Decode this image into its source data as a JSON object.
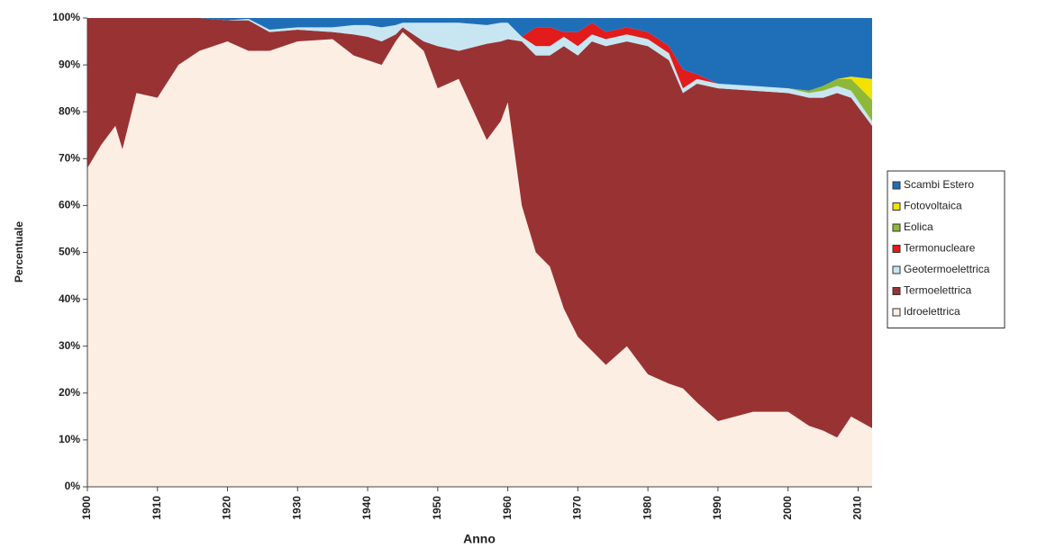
{
  "chart_data": {
    "type": "stacked_area",
    "y_label": "Percentuale",
    "x_label": "Anno",
    "x": [
      1900,
      1902,
      1904,
      1905,
      1907,
      1910,
      1913,
      1916,
      1920,
      1923,
      1926,
      1930,
      1935,
      1938,
      1940,
      1942,
      1944,
      1945,
      1948,
      1950,
      1953,
      1957,
      1959,
      1960,
      1962,
      1964,
      1966,
      1968,
      1970,
      1972,
      1974,
      1977,
      1980,
      1983,
      1985,
      1987,
      1990,
      1995,
      2000,
      2003,
      2005,
      2007,
      2009,
      2012
    ],
    "series": [
      {
        "name": "Idroelettrica",
        "color": "#fdeee4",
        "values": [
          68,
          73,
          77,
          72,
          84,
          83,
          90,
          93,
          95,
          93,
          93,
          95,
          95.5,
          92,
          91,
          90,
          95,
          97,
          93,
          85,
          87,
          74,
          78,
          82,
          60,
          50,
          47,
          38,
          32,
          29,
          26,
          30,
          24,
          22,
          21,
          18,
          14,
          16,
          16,
          13,
          12,
          10.5,
          15,
          12.5
        ]
      },
      {
        "name": "Termoelettrica",
        "color": "#993333",
        "values": [
          32,
          27,
          23,
          28,
          16,
          17,
          10,
          7,
          4.5,
          6.5,
          4,
          2.5,
          1.5,
          4.5,
          5,
          5,
          1.5,
          1,
          2,
          9,
          6,
          20.5,
          17,
          13.5,
          35,
          42,
          45,
          56,
          60,
          66,
          68,
          65,
          70,
          69,
          63,
          68,
          71,
          68.5,
          68,
          70,
          71,
          73.5,
          68,
          64.5
        ]
      },
      {
        "name": "Geotermoelettrica",
        "color": "#c7e6f2",
        "values": [
          0,
          0,
          0,
          0,
          0,
          0,
          0,
          0,
          0,
          0.3,
          0.5,
          0.5,
          1,
          2,
          2.5,
          3,
          2,
          1,
          4,
          5,
          6,
          4,
          4,
          3.5,
          1,
          2,
          2,
          2,
          2,
          1.5,
          1.5,
          1.5,
          1.5,
          1.5,
          1,
          1,
          1,
          1,
          1,
          1,
          1.5,
          1.5,
          1.5,
          1
        ]
      },
      {
        "name": "Termonucleare",
        "color": "#e21b1b",
        "values": [
          0,
          0,
          0,
          0,
          0,
          0,
          0,
          0,
          0,
          0,
          0,
          0,
          0,
          0,
          0,
          0,
          0,
          0,
          0,
          0,
          0,
          0,
          0,
          0,
          0,
          4,
          4,
          1,
          3,
          2.5,
          1.5,
          1.5,
          1.5,
          1.5,
          4,
          1,
          0,
          0,
          0,
          0,
          0,
          0,
          0,
          0
        ]
      },
      {
        "name": "Eolica",
        "color": "#8db83a",
        "values": [
          0,
          0,
          0,
          0,
          0,
          0,
          0,
          0,
          0,
          0,
          0,
          0,
          0,
          0,
          0,
          0,
          0,
          0,
          0,
          0,
          0,
          0,
          0,
          0,
          0,
          0,
          0,
          0,
          0,
          0,
          0,
          0,
          0,
          0,
          0,
          0,
          0,
          0,
          0,
          0.5,
          1,
          1.5,
          2.5,
          4.5
        ]
      },
      {
        "name": "Fotovoltaica",
        "color": "#f2e200",
        "values": [
          0,
          0,
          0,
          0,
          0,
          0,
          0,
          0,
          0,
          0,
          0,
          0,
          0,
          0,
          0,
          0,
          0,
          0,
          0,
          0,
          0,
          0,
          0,
          0,
          0,
          0,
          0,
          0,
          0,
          0,
          0,
          0,
          0,
          0,
          0,
          0,
          0,
          0,
          0,
          0,
          0,
          0,
          0.5,
          4.5
        ]
      },
      {
        "name": "Scambi Estero",
        "color": "#1f6fb8",
        "values": [
          0,
          0,
          0,
          0,
          0,
          0,
          0,
          0,
          0.5,
          0.2,
          2.5,
          2,
          2,
          1.5,
          1.5,
          2,
          1.5,
          1,
          1,
          1,
          1,
          1.5,
          1,
          1,
          4,
          2,
          2,
          3,
          3,
          1,
          3,
          2,
          3,
          6,
          11,
          12,
          14,
          14.5,
          15,
          15.5,
          14.5,
          13,
          12.5,
          13
        ]
      }
    ],
    "xlim": [
      1900,
      2012
    ],
    "xticks": [
      1900,
      1910,
      1920,
      1930,
      1940,
      1950,
      1960,
      1970,
      1980,
      1990,
      2000,
      2010
    ],
    "ylim": [
      0,
      100
    ],
    "yticks": [
      {
        "value": 0,
        "label": "0%"
      },
      {
        "value": 10,
        "label": "10%"
      },
      {
        "value": 20,
        "label": "20%"
      },
      {
        "value": 30,
        "label": "30%"
      },
      {
        "value": 40,
        "label": "40%"
      },
      {
        "value": 50,
        "label": "50%"
      },
      {
        "value": 60,
        "label": "60%"
      },
      {
        "value": 70,
        "label": "70%"
      },
      {
        "value": 80,
        "label": "80%"
      },
      {
        "value": 90,
        "label": "90%"
      },
      {
        "value": 100,
        "label": "100%"
      }
    ],
    "grid": false
  }
}
